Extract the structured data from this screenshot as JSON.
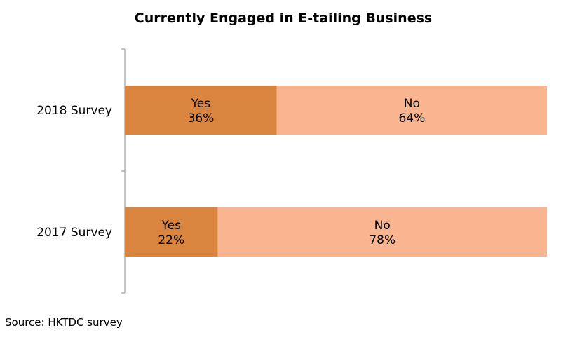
{
  "chart_data": {
    "type": "bar",
    "orientation": "horizontal",
    "stacked": true,
    "title": "Currently Engaged in E-tailing Business",
    "categories": [
      "2018 Survey",
      "2017 Survey"
    ],
    "series": [
      {
        "name": "Yes",
        "values": [
          36,
          22
        ],
        "labels": [
          "36%",
          "22%"
        ],
        "color": "#D9843F"
      },
      {
        "name": "No",
        "values": [
          64,
          78
        ],
        "labels": [
          "64%",
          "78%"
        ],
        "color": "#F8B590"
      }
    ],
    "xlim": [
      0,
      100
    ],
    "grid": false,
    "legend": "none"
  },
  "source": "Source: HKTDC survey"
}
